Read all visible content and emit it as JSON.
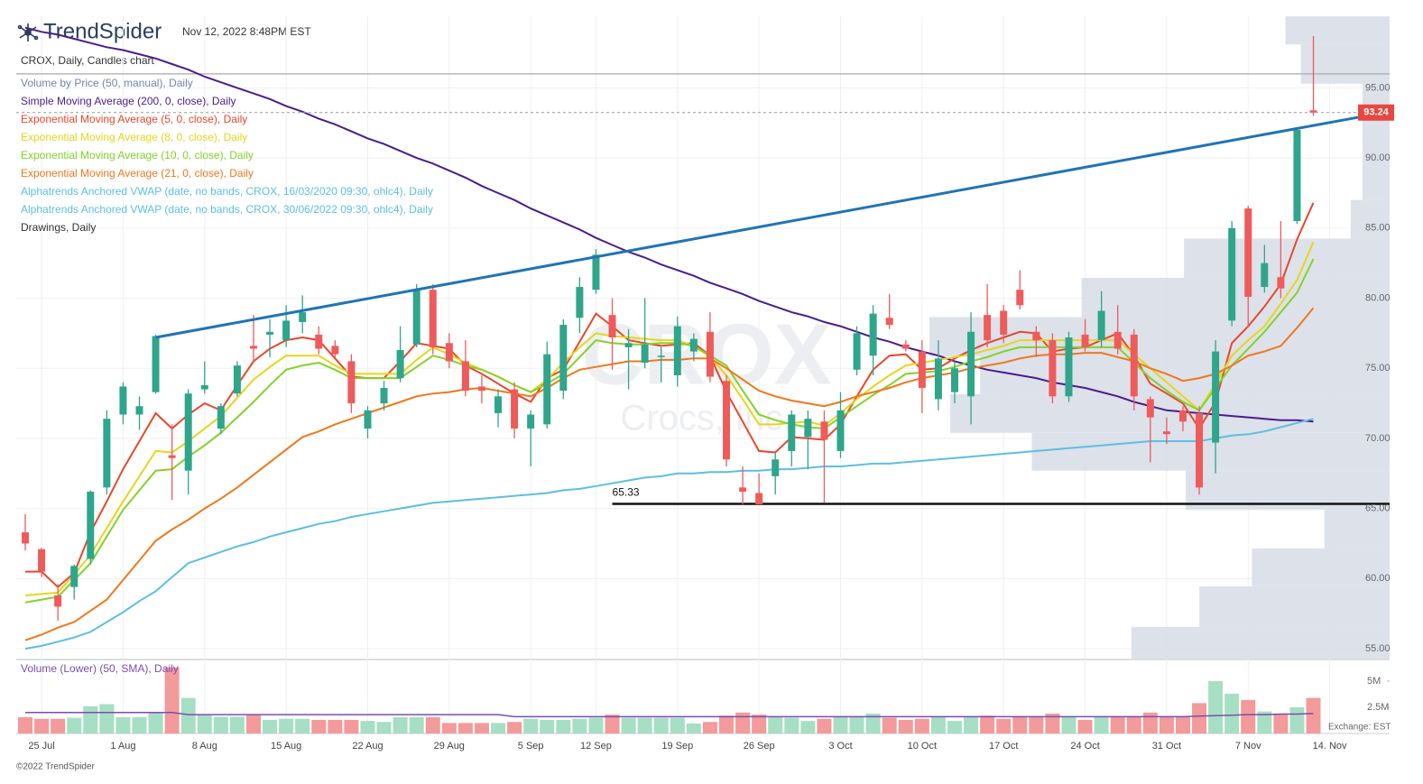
{
  "brand": "TrendSpider",
  "timestamp": "Nov 12, 2022 8:48PM EST",
  "copyright": "©2022 TrendSpider",
  "chart_data": {
    "type": "candlestick",
    "title": "CROX, Daily, Candles chart",
    "watermark": "CROX",
    "watermark_subtitle": "Crocs, Inc.",
    "categories": [
      null,
      "25 Jul",
      null,
      null,
      null,
      null,
      "1 Aug",
      null,
      null,
      null,
      null,
      "8 Aug",
      null,
      null,
      null,
      null,
      "15 Aug",
      null,
      null,
      null,
      null,
      "22 Aug",
      null,
      null,
      null,
      null,
      "29 Aug",
      null,
      null,
      null,
      null,
      "5 Sep",
      null,
      null,
      null,
      "12 Sep",
      null,
      null,
      null,
      null,
      "19 Sep",
      null,
      null,
      null,
      null,
      "26 Sep",
      null,
      null,
      null,
      null,
      "3 Oct",
      null,
      null,
      null,
      null,
      "10 Oct",
      null,
      null,
      null,
      null,
      "17 Oct",
      null,
      null,
      null,
      null,
      "24 Oct",
      null,
      null,
      null,
      null,
      "31 Oct",
      null,
      null,
      null,
      null,
      "7 Nov",
      null,
      null,
      null,
      null,
      "14. Nov"
    ],
    "open": [
      63.3,
      62.1,
      58.8,
      59.4,
      61.4,
      66.5,
      71.7,
      71.7,
      73.3,
      68.8,
      67.7,
      73.5,
      70.7,
      73.2,
      76.6,
      77.4,
      77.0,
      78.3,
      77.4,
      76.6,
      75.5,
      70.7,
      72.5,
      74.3,
      76.7,
      80.6,
      76.8,
      75.5,
      73.7,
      71.8,
      73.5,
      70.7,
      71.0,
      73.4,
      78.6,
      80.6,
      78.8,
      76.5,
      75.4,
      75.8,
      74.5,
      76.2,
      77.6,
      74.1,
      66.5,
      66.1,
      67.3,
      69.1,
      70.1,
      71.2,
      69.1,
      74.9,
      75.9,
      78.6,
      76.7,
      76.2,
      72.8,
      73.3,
      73.0,
      78.8,
      79.1,
      80.6,
      77.6,
      77.0,
      73.0,
      77.4,
      77.0,
      77.6,
      77.4,
      72.8,
      70.5,
      72.0,
      71.8,
      69.7,
      78.4,
      86.4,
      80.8,
      81.5,
      85.5,
      93.4,
      null
    ],
    "high": [
      64.6,
      62.2,
      59.6,
      61.0,
      66.3,
      72.0,
      74.0,
      73.0,
      77.4,
      71.0,
      73.5,
      75.5,
      72.5,
      75.5,
      78.8,
      78.5,
      79.5,
      80.2,
      78.0,
      77.0,
      76.0,
      72.3,
      74.1,
      78.0,
      81.0,
      81.0,
      77.5,
      77.0,
      74.5,
      73.5,
      74.0,
      72.0,
      76.9,
      78.5,
      81.5,
      83.5,
      80.0,
      77.8,
      80.0,
      76.5,
      78.7,
      77.5,
      79.0,
      74.5,
      68.0,
      67.5,
      69.0,
      72.0,
      72.0,
      72.0,
      73.3,
      78.0,
      79.5,
      80.3,
      77.0,
      77.0,
      77.0,
      75.5,
      79.0,
      81.0,
      79.5,
      82.0,
      78.0,
      77.5,
      77.6,
      78.5,
      80.5,
      79.5,
      77.8,
      73.0,
      71.5,
      72.3,
      72.3,
      77.0,
      85.5,
      86.6,
      83.8,
      85.5,
      92.1,
      98.7,
      null
    ],
    "low": [
      62.0,
      60.1,
      57.0,
      58.5,
      61.0,
      66.0,
      71.0,
      70.6,
      73.2,
      65.6,
      66.0,
      73.2,
      70.3,
      73.0,
      75.5,
      75.8,
      76.5,
      77.5,
      76.0,
      75.8,
      71.8,
      70.0,
      72.0,
      74.0,
      76.5,
      76.0,
      75.0,
      73.0,
      72.5,
      70.8,
      70.0,
      68.0,
      70.7,
      72.8,
      77.5,
      80.3,
      74.9,
      73.5,
      75.0,
      74.0,
      73.7,
      75.5,
      74.0,
      68.0,
      65.3,
      65.3,
      66.0,
      68.0,
      67.8,
      65.4,
      68.6,
      74.5,
      74.5,
      77.8,
      76.2,
      71.8,
      72.0,
      72.5,
      71.0,
      76.5,
      76.8,
      79.2,
      75.8,
      72.5,
      72.6,
      76.2,
      76.5,
      76.0,
      72.0,
      68.3,
      69.6,
      70.5,
      66.0,
      67.5,
      78.0,
      77.9,
      80.4,
      80.0,
      85.3,
      93.0,
      null
    ],
    "close": [
      62.5,
      60.5,
      58.0,
      60.9,
      66.2,
      71.4,
      73.7,
      72.3,
      77.3,
      68.6,
      73.2,
      73.8,
      72.3,
      75.2,
      76.4,
      77.6,
      78.4,
      79.0,
      76.4,
      76.0,
      72.5,
      72.0,
      73.6,
      76.3,
      80.6,
      76.5,
      75.5,
      73.4,
      73.4,
      73.0,
      70.7,
      71.7,
      76.0,
      78.1,
      80.8,
      83.1,
      77.2,
      76.8,
      76.7,
      75.9,
      78.0,
      77.1,
      74.4,
      68.5,
      66.2,
      65.3,
      68.5,
      71.7,
      71.4,
      69.9,
      72.0,
      77.5,
      78.9,
      78.1,
      76.4,
      73.6,
      75.7,
      75.0,
      77.6,
      77.0,
      77.4,
      79.5,
      77.0,
      73.0,
      77.2,
      76.5,
      79.1,
      76.4,
      73.0,
      71.5,
      70.3,
      71.2,
      66.5,
      76.2,
      85.0,
      80.1,
      82.5,
      80.7,
      92.0,
      93.24,
      null
    ],
    "up_color": "#2fa58b",
    "down_color": "#ee5b5b",
    "last_price": 93.24,
    "last_price_color": "#e8473f",
    "ylim": [
      54.23,
      100.11
    ],
    "yticks": [
      {
        "value": 55,
        "label": "55.00"
      },
      {
        "value": 60,
        "label": "60.00"
      },
      {
        "value": 65,
        "label": "65.00"
      },
      {
        "value": 70,
        "label": "70.00"
      },
      {
        "value": 75,
        "label": "75.00"
      },
      {
        "value": 80,
        "label": "80.00"
      },
      {
        "value": 85,
        "label": "85.00"
      },
      {
        "value": 90,
        "label": "90.00"
      },
      {
        "value": 95,
        "label": "95.00"
      }
    ],
    "grid": true,
    "studies": [
      {
        "name": "Volume by Price (50, manual), Daily",
        "color": "#6e86a8",
        "fill": "#d9dee8",
        "bins": [
          54.3,
          56.55,
          59.45,
          62.15,
          64.9,
          67.7,
          70.4,
          73.15,
          75.85,
          78.65,
          81.45,
          84.25,
          87.0,
          89.75,
          92.5,
          95.3,
          98.1,
          100.1
        ],
        "values": [
          285,
          210,
          152,
          72,
          225,
          395,
          485,
          452,
          508,
          340,
          227,
          43,
          30,
          30,
          30,
          98,
          115
        ]
      },
      {
        "name": "Simple Moving Average (200, 0, close), Daily",
        "color": "#4a1d8c",
        "values": [
          99.3,
          99.0,
          98.8,
          98.5,
          98.2,
          97.9,
          97.7,
          97.4,
          97.1,
          96.7,
          96.3,
          95.8,
          95.4,
          95.0,
          94.6,
          94.2,
          93.7,
          93.3,
          92.8,
          92.4,
          91.9,
          91.4,
          91.0,
          90.5,
          90.0,
          89.6,
          89.1,
          88.6,
          88.0,
          87.5,
          87.0,
          86.4,
          85.9,
          85.4,
          84.9,
          84.3,
          83.8,
          83.3,
          82.9,
          82.4,
          82.0,
          81.6,
          81.1,
          80.7,
          80.3,
          79.8,
          79.4,
          79.0,
          78.7,
          78.3,
          78.0,
          77.6,
          77.2,
          76.9,
          76.5,
          76.2,
          75.9,
          75.5,
          75.2,
          74.9,
          74.7,
          74.5,
          74.3,
          74.0,
          73.8,
          73.6,
          73.3,
          73.0,
          72.6,
          72.3,
          72.0,
          71.9,
          71.8,
          71.7,
          71.6,
          71.5,
          71.4,
          71.3,
          71.3,
          71.2,
          null
        ]
      },
      {
        "name": "Exponential Moving Average (5, 0, close), Daily",
        "color": "#e8472c",
        "values": [
          60.5,
          60.5,
          59.4,
          60.4,
          63.3,
          65.5,
          67.8,
          69.8,
          71.8,
          70.7,
          71.7,
          72.5,
          72.0,
          73.8,
          75.5,
          76.4,
          77.0,
          77.2,
          77.0,
          75.7,
          74.4,
          74.3,
          74.3,
          75.5,
          76.8,
          76.6,
          76.4,
          75.2,
          74.6,
          73.9,
          73.2,
          72.6,
          74.3,
          74.9,
          76.9,
          78.9,
          78.0,
          77.0,
          76.8,
          76.6,
          76.7,
          76.8,
          75.9,
          73.3,
          71.2,
          69.1,
          69.0,
          70.1,
          70.0,
          69.9,
          71.0,
          73.0,
          74.9,
          75.9,
          76.0,
          74.9,
          75.0,
          75.7,
          76.3,
          76.8,
          77.2,
          77.6,
          77.5,
          76.2,
          76.4,
          76.5,
          77.0,
          77.5,
          75.9,
          73.9,
          73.2,
          72.5,
          70.7,
          72.6,
          76.8,
          78.0,
          79.4,
          81.0,
          84.2,
          86.8,
          null
        ]
      },
      {
        "name": "Exponential Moving Average (8, 0, close), Daily",
        "color": "#e4d61c",
        "values": [
          58.8,
          58.9,
          59.0,
          60.3,
          61.7,
          63.6,
          65.5,
          67.3,
          69.1,
          69.0,
          69.8,
          70.7,
          71.6,
          72.9,
          74.2,
          75.1,
          75.9,
          75.9,
          75.9,
          75.2,
          74.6,
          74.6,
          74.6,
          74.6,
          75.6,
          76.5,
          76.0,
          75.4,
          74.9,
          74.4,
          73.8,
          73.3,
          74.2,
          75.4,
          76.5,
          77.5,
          77.3,
          77.2,
          77.1,
          77.0,
          77.0,
          76.6,
          75.8,
          74.5,
          72.8,
          71.0,
          71.0,
          71.1,
          71.2,
          70.9,
          71.8,
          72.8,
          73.7,
          74.5,
          75.2,
          75.4,
          75.6,
          75.8,
          76.0,
          76.3,
          76.6,
          77.0,
          77.0,
          77.0,
          77.0,
          77.0,
          77.0,
          77.0,
          76.0,
          75.0,
          74.0,
          73.0,
          72.0,
          73.9,
          75.9,
          77.0,
          78.0,
          79.6,
          81.3,
          84.0,
          null
        ]
      },
      {
        "name": "Exponential Moving Average (10, 0, close), Daily",
        "color": "#84d22a",
        "values": [
          58.3,
          58.5,
          58.7,
          59.9,
          61.1,
          63.0,
          64.9,
          66.3,
          67.7,
          67.8,
          68.7,
          69.5,
          70.4,
          71.5,
          72.6,
          73.8,
          74.9,
          75.2,
          75.4,
          74.9,
          74.3,
          74.3,
          74.3,
          74.3,
          75.1,
          75.9,
          75.6,
          75.2,
          74.9,
          74.4,
          73.8,
          73.3,
          73.9,
          74.6,
          75.8,
          77.0,
          76.8,
          76.7,
          76.7,
          76.8,
          76.8,
          76.6,
          75.9,
          75.2,
          73.4,
          71.7,
          71.3,
          71.0,
          70.8,
          70.7,
          71.5,
          72.3,
          73.1,
          73.8,
          74.6,
          74.7,
          74.8,
          75.1,
          75.5,
          75.8,
          76.2,
          76.5,
          76.5,
          76.5,
          76.5,
          76.5,
          76.5,
          76.5,
          75.4,
          74.3,
          73.4,
          72.6,
          72.0,
          73.6,
          75.2,
          76.4,
          77.6,
          79.0,
          80.4,
          82.8,
          null
        ]
      },
      {
        "name": "Exponential Moving Average (21, 0, close), Daily",
        "color": "#ef781c",
        "values": [
          55.6,
          56.0,
          56.5,
          56.9,
          57.7,
          58.5,
          59.9,
          61.3,
          62.7,
          63.5,
          64.2,
          65.0,
          65.7,
          66.5,
          67.4,
          68.3,
          69.2,
          70.1,
          70.5,
          71.0,
          71.4,
          71.8,
          72.2,
          72.6,
          73.0,
          73.2,
          73.3,
          73.5,
          73.6,
          73.4,
          73.2,
          73.0,
          73.6,
          74.3,
          74.9,
          75.1,
          75.3,
          75.5,
          75.5,
          75.6,
          75.6,
          75.7,
          75.7,
          75.0,
          74.2,
          73.4,
          73.0,
          72.7,
          72.5,
          72.3,
          72.6,
          73.0,
          73.3,
          73.6,
          74.0,
          74.3,
          74.5,
          74.7,
          75.0,
          75.2,
          75.4,
          75.7,
          75.9,
          76.0,
          76.0,
          76.1,
          76.1,
          75.8,
          75.5,
          75.0,
          74.6,
          74.1,
          74.3,
          74.6,
          75.2,
          75.9,
          76.2,
          76.6,
          77.9,
          79.3,
          null
        ]
      },
      {
        "name": "Alphatrends Anchored VWAP (date, no bands, CROX, 16/03/2020 09:30, ohlc4), Daily",
        "color": "#5cbfe0"
      },
      {
        "name": "Alphatrends Anchored VWAP (date, no bands, CROX, 30/06/2022 09:30, ohlc4), Daily",
        "color": "#5cbfe0",
        "values": [
          55.0,
          55.2,
          55.5,
          55.8,
          56.2,
          56.9,
          57.6,
          58.4,
          59.1,
          60.1,
          61.1,
          61.5,
          61.9,
          62.3,
          62.6,
          63.0,
          63.3,
          63.6,
          63.9,
          64.1,
          64.4,
          64.6,
          64.8,
          65.0,
          65.2,
          65.4,
          65.5,
          65.6,
          65.7,
          65.8,
          65.9,
          66.0,
          66.1,
          66.3,
          66.4,
          66.6,
          66.8,
          67.0,
          67.2,
          67.3,
          67.5,
          67.5,
          67.6,
          67.6,
          67.7,
          67.7,
          67.8,
          67.8,
          67.9,
          68.0,
          68.0,
          68.1,
          68.2,
          68.2,
          68.3,
          68.4,
          68.5,
          68.6,
          68.7,
          68.8,
          68.9,
          69.0,
          69.1,
          69.2,
          69.3,
          69.4,
          69.5,
          69.6,
          69.7,
          69.8,
          69.8,
          69.8,
          69.8,
          70.0,
          70.2,
          70.3,
          70.5,
          70.8,
          71.1,
          71.4,
          null
        ]
      },
      {
        "name": "Drawings, Daily",
        "color": "#333333",
        "trendline": [
          77.2,
          92.9
        ],
        "trendline_color": "#1f74b6",
        "support": 65.33,
        "resistance": 96.0
      }
    ],
    "volume": {
      "title": "Volume (Lower) (50, SMA), Daily",
      "title_color": "#7b4db0",
      "note": "Exchange: EST",
      "values": [
        1.55,
        1.4,
        1.4,
        1.5,
        2.6,
        2.8,
        1.55,
        1.55,
        2.0,
        6.3,
        3.4,
        1.8,
        1.6,
        1.6,
        1.8,
        1.3,
        1.4,
        1.4,
        1.3,
        1.3,
        1.3,
        1.2,
        1.1,
        1.55,
        1.55,
        1.55,
        1.0,
        1.0,
        1.0,
        1.0,
        1.1,
        1.4,
        1.3,
        1.3,
        1.4,
        1.5,
        1.8,
        1.5,
        1.5,
        1.5,
        1.5,
        0.95,
        1.1,
        1.7,
        2.0,
        1.8,
        1.6,
        1.5,
        1.2,
        1.4,
        1.55,
        1.55,
        1.9,
        1.5,
        1.3,
        1.4,
        1.55,
        1.2,
        1.55,
        1.7,
        1.4,
        1.6,
        1.55,
        1.9,
        1.55,
        1.3,
        1.55,
        1.55,
        1.6,
        2.0,
        1.6,
        1.6,
        2.9,
        5.0,
        3.8,
        3.2,
        2.1,
        1.9,
        2.5,
        3.4,
        null
      ],
      "sma": [
        2.0,
        2.0,
        2.0,
        2.0,
        2.0,
        2.0,
        2.0,
        2.0,
        2.0,
        2.0,
        1.8,
        1.8,
        1.8,
        1.8,
        1.8,
        1.8,
        1.8,
        1.8,
        1.8,
        1.8,
        1.8,
        1.8,
        1.8,
        1.8,
        1.8,
        1.8,
        1.8,
        1.8,
        1.8,
        1.8,
        1.6,
        1.6,
        1.6,
        1.6,
        1.6,
        1.6,
        1.6,
        1.6,
        1.6,
        1.6,
        1.6,
        1.6,
        1.6,
        1.6,
        1.6,
        1.6,
        1.6,
        1.6,
        1.6,
        1.6,
        1.6,
        1.6,
        1.6,
        1.6,
        1.6,
        1.6,
        1.6,
        1.6,
        1.6,
        1.6,
        1.6,
        1.6,
        1.6,
        1.6,
        1.6,
        1.6,
        1.6,
        1.6,
        1.6,
        1.6,
        1.6,
        1.6,
        1.65,
        1.7,
        1.75,
        1.8,
        1.8,
        1.85,
        1.85,
        1.9,
        null
      ],
      "sma_color": "#7b4db0",
      "up_color": "#a6dfc4",
      "down_color": "#f39a9a",
      "ylim": [
        0,
        6.72
      ],
      "yticks": [
        {
          "value": 2.5,
          "label": "2.5M"
        },
        {
          "value": 5,
          "label": "5M"
        }
      ]
    }
  }
}
